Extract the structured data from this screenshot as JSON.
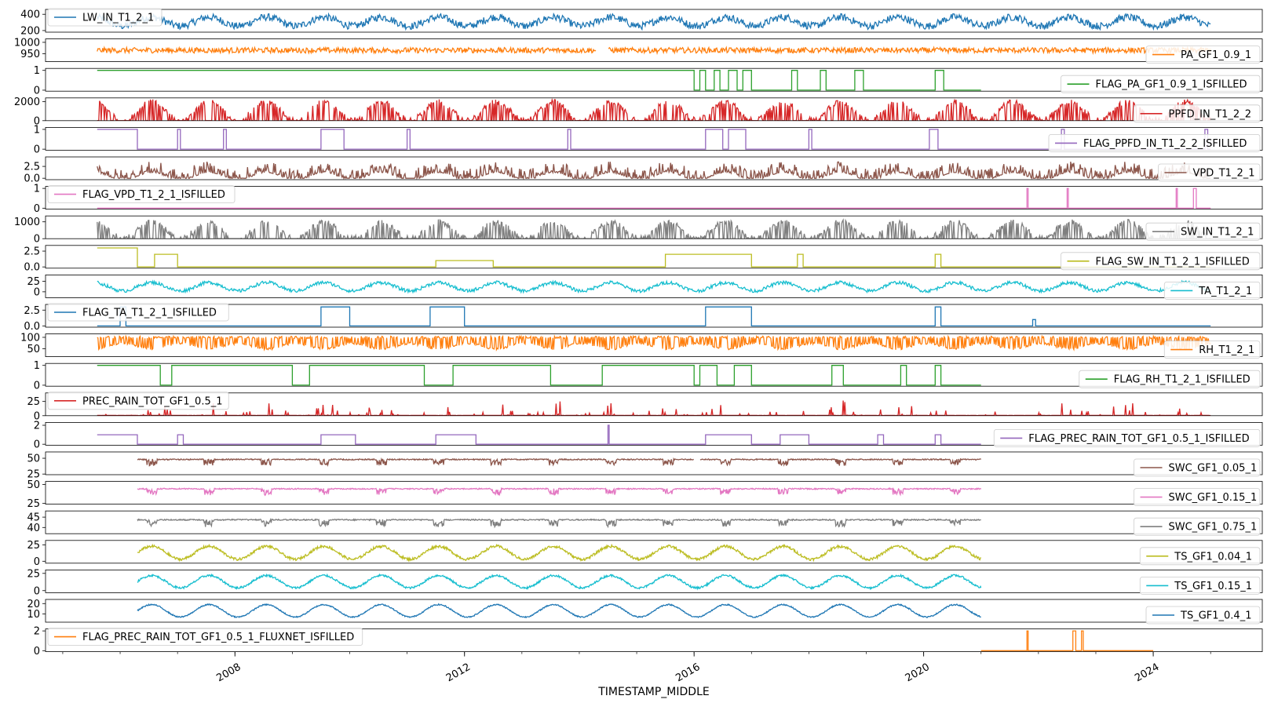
{
  "chart_data": {
    "type": "line",
    "layout": "stacked-subplots",
    "shared_x": true,
    "xlabel": "TIMESTAMP_MIDDLE",
    "x_range": [
      2004.7,
      2025.9
    ],
    "x_ticks": [
      2008,
      2012,
      2016,
      2020,
      2024
    ],
    "x_tick_labels": [
      "2008",
      "2012",
      "2016",
      "2020",
      "2024"
    ],
    "panels": [
      {
        "name": "LW_IN_T1_2_1",
        "color": "#1f77b4",
        "legend": "upper-left",
        "ylim": [
          180,
          460
        ],
        "yticks": [
          200,
          400
        ],
        "kind": "seasonal",
        "start": 2005.6,
        "end": 2025.0,
        "base": 310,
        "amp": 55,
        "noise": 45
      },
      {
        "name": "PA_GF1_0.9_1",
        "color": "#ff7f0e",
        "legend": "lower-right",
        "ylim": [
          915,
          1015
        ],
        "yticks": [
          950,
          1000
        ],
        "kind": "noise",
        "start": 2005.6,
        "end": 2025.0,
        "base": 965,
        "amp": 0,
        "noise": 12,
        "gaps": [
          [
            2014.3,
            2014.5
          ]
        ]
      },
      {
        "name": "FLAG_PA_GF1_0.9_1_ISFILLED",
        "color": "#2ca02c",
        "legend": "lower-right",
        "ylim": [
          -0.05,
          1.1
        ],
        "yticks": [
          0,
          1
        ],
        "kind": "step",
        "start": 2005.6,
        "end": 2021.0,
        "segments": [
          [
            2005.6,
            1
          ],
          [
            2016.0,
            0
          ],
          [
            2016.1,
            1
          ],
          [
            2016.2,
            0
          ],
          [
            2016.35,
            1
          ],
          [
            2016.45,
            0
          ],
          [
            2016.6,
            1
          ],
          [
            2016.75,
            0
          ],
          [
            2016.85,
            1
          ],
          [
            2017.0,
            0
          ],
          [
            2017.7,
            1
          ],
          [
            2017.8,
            0
          ],
          [
            2018.2,
            1
          ],
          [
            2018.3,
            0
          ],
          [
            2018.8,
            1
          ],
          [
            2018.95,
            0
          ],
          [
            2020.2,
            1
          ],
          [
            2020.35,
            0
          ]
        ]
      },
      {
        "name": "PPFD_IN_T1_2_2",
        "color": "#d62728",
        "legend": "lower-right",
        "ylim": [
          0,
          2400
        ],
        "yticks": [
          0,
          2000
        ],
        "kind": "seasonal-fill",
        "start": 2005.6,
        "end": 2025.0,
        "base": 1050,
        "amp": 950,
        "noise": 250
      },
      {
        "name": "FLAG_PPFD_IN_T1_2_2_ISFILLED",
        "color": "#9467bd",
        "legend": "lower-right",
        "ylim": [
          -0.05,
          1.1
        ],
        "yticks": [
          0,
          1
        ],
        "kind": "step",
        "start": 2005.6,
        "end": 2025.0,
        "segments": [
          [
            2005.6,
            1
          ],
          [
            2006.3,
            0
          ],
          [
            2007.0,
            1
          ],
          [
            2007.05,
            0
          ],
          [
            2007.8,
            1
          ],
          [
            2007.85,
            0
          ],
          [
            2009.5,
            1
          ],
          [
            2009.9,
            0
          ],
          [
            2011.0,
            1
          ],
          [
            2011.05,
            0
          ],
          [
            2013.8,
            1
          ],
          [
            2013.85,
            0
          ],
          [
            2016.2,
            1
          ],
          [
            2016.5,
            0
          ],
          [
            2016.6,
            1
          ],
          [
            2016.9,
            0
          ],
          [
            2018.0,
            1
          ],
          [
            2018.05,
            0
          ],
          [
            2020.1,
            1
          ],
          [
            2020.25,
            0
          ],
          [
            2022.4,
            1
          ],
          [
            2022.45,
            0
          ],
          [
            2024.9,
            1
          ],
          [
            2024.95,
            0
          ]
        ]
      },
      {
        "name": "VPD_T1_2_1",
        "color": "#8c564b",
        "legend": "lower-right",
        "ylim": [
          -0.3,
          4.5
        ],
        "yticks": [
          0.0,
          2.5
        ],
        "tick_labels": [
          "0.0",
          "2.5"
        ],
        "kind": "seasonal-spiky",
        "start": 2005.6,
        "end": 2025.0,
        "base": 0.6,
        "amp": 0.8,
        "noise": 1.2
      },
      {
        "name": "FLAG_VPD_T1_2_1_ISFILLED",
        "color": "#e377c2",
        "legend": "upper-left",
        "ylim": [
          -0.05,
          1.1
        ],
        "yticks": [
          0,
          1
        ],
        "kind": "step",
        "start": 2005.6,
        "end": 2025.0,
        "segments": [
          [
            2005.6,
            0
          ],
          [
            2021.8,
            1
          ],
          [
            2021.82,
            0
          ],
          [
            2022.5,
            1
          ],
          [
            2022.52,
            0
          ],
          [
            2024.4,
            1
          ],
          [
            2024.42,
            0
          ],
          [
            2024.7,
            1
          ],
          [
            2024.75,
            0
          ]
        ]
      },
      {
        "name": "SW_IN_T1_2_1",
        "color": "#7f7f7f",
        "legend": "lower-right",
        "ylim": [
          0,
          1350
        ],
        "yticks": [
          0,
          1000
        ],
        "kind": "seasonal-fill",
        "start": 2005.6,
        "end": 2025.0,
        "base": 520,
        "amp": 480,
        "noise": 150
      },
      {
        "name": "FLAG_SW_IN_T1_2_1_ISFILLED",
        "color": "#bcbd22",
        "legend": "lower-right",
        "ylim": [
          -0.2,
          3.4
        ],
        "yticks": [
          0.0,
          2.5
        ],
        "tick_labels": [
          "0.0",
          "2.5"
        ],
        "kind": "step",
        "start": 2005.6,
        "end": 2025.0,
        "segments": [
          [
            2005.6,
            3
          ],
          [
            2006.3,
            0
          ],
          [
            2006.6,
            2
          ],
          [
            2007.0,
            0
          ],
          [
            2011.5,
            1
          ],
          [
            2012.5,
            0
          ],
          [
            2015.5,
            2
          ],
          [
            2017.0,
            0
          ],
          [
            2017.8,
            2
          ],
          [
            2017.9,
            0
          ],
          [
            2020.2,
            2
          ],
          [
            2020.3,
            0
          ]
        ]
      },
      {
        "name": "TA_T1_2_1",
        "color": "#17becf",
        "legend": "lower-right",
        "ylim": [
          -14,
          40
        ],
        "yticks": [
          0,
          25
        ],
        "extra_tick_labels": [
          "25"
        ],
        "kind": "seasonal",
        "start": 2005.6,
        "end": 2025.0,
        "base": 12,
        "amp": 10,
        "noise": 4
      },
      {
        "name": "FLAG_TA_T1_2_1_ISFILLED",
        "color": "#1f77b4",
        "legend": "upper-left",
        "ylim": [
          -0.2,
          3.4
        ],
        "yticks": [
          0.0,
          2.5
        ],
        "tick_labels": [
          "0.0",
          "2.5"
        ],
        "kind": "step",
        "start": 2005.6,
        "end": 2025.0,
        "segments": [
          [
            2005.6,
            0
          ],
          [
            2006.0,
            3
          ],
          [
            2006.1,
            0
          ],
          [
            2009.5,
            3
          ],
          [
            2010.0,
            0
          ],
          [
            2011.4,
            3
          ],
          [
            2012.0,
            0
          ],
          [
            2016.2,
            3
          ],
          [
            2017.0,
            0
          ],
          [
            2020.2,
            3
          ],
          [
            2020.3,
            0
          ],
          [
            2021.9,
            1
          ],
          [
            2021.95,
            0
          ]
        ]
      },
      {
        "name": "RH_T1_2_1",
        "color": "#ff7f0e",
        "legend": "lower-right",
        "ylim": [
          15,
          115
        ],
        "yticks": [
          50,
          100
        ],
        "kind": "fill-high",
        "start": 2005.6,
        "end": 2025.0,
        "base": 75,
        "amp": 12,
        "noise": 18
      },
      {
        "name": "FLAG_RH_T1_2_1_ISFILLED",
        "color": "#2ca02c",
        "legend": "lower-right",
        "ylim": [
          -0.05,
          1.1
        ],
        "yticks": [
          0,
          1
        ],
        "kind": "step",
        "start": 2005.6,
        "end": 2021.0,
        "segments": [
          [
            2005.6,
            1
          ],
          [
            2006.7,
            0
          ],
          [
            2006.9,
            1
          ],
          [
            2009.0,
            0
          ],
          [
            2009.3,
            1
          ],
          [
            2011.3,
            0
          ],
          [
            2011.8,
            1
          ],
          [
            2013.5,
            0
          ],
          [
            2014.4,
            1
          ],
          [
            2016.0,
            0
          ],
          [
            2016.1,
            1
          ],
          [
            2016.4,
            0
          ],
          [
            2016.7,
            1
          ],
          [
            2017.0,
            0
          ],
          [
            2018.4,
            1
          ],
          [
            2018.6,
            0
          ],
          [
            2019.6,
            1
          ],
          [
            2019.7,
            0
          ],
          [
            2020.2,
            1
          ],
          [
            2020.3,
            0
          ]
        ]
      },
      {
        "name": "PREC_RAIN_TOT_GF1_0.5_1",
        "color": "#d62728",
        "legend": "upper-left",
        "ylim": [
          0,
          40
        ],
        "yticks": [
          0,
          25
        ],
        "kind": "spikes",
        "start": 2005.6,
        "end": 2025.0,
        "base": 0,
        "amp": 12,
        "noise": 28
      },
      {
        "name": "FLAG_PREC_RAIN_TOT_GF1_0.5_1_ISFILLED",
        "color": "#9467bd",
        "legend": "lower-right",
        "ylim": [
          -0.1,
          2.3
        ],
        "yticks": [
          0,
          2
        ],
        "kind": "step",
        "start": 2005.6,
        "end": 2021.0,
        "segments": [
          [
            2005.6,
            1
          ],
          [
            2006.3,
            0
          ],
          [
            2007.0,
            1
          ],
          [
            2007.1,
            0
          ],
          [
            2009.5,
            1
          ],
          [
            2010.1,
            0
          ],
          [
            2011.5,
            1
          ],
          [
            2012.2,
            0
          ],
          [
            2014.5,
            2
          ],
          [
            2014.52,
            0
          ],
          [
            2016.2,
            1
          ],
          [
            2017.0,
            0
          ],
          [
            2017.5,
            1
          ],
          [
            2018.0,
            0
          ],
          [
            2019.2,
            1
          ],
          [
            2019.3,
            0
          ],
          [
            2020.2,
            1
          ],
          [
            2020.3,
            0
          ]
        ]
      },
      {
        "name": "SWC_GF1_0.05_1",
        "color": "#8c564b",
        "legend": "lower-right",
        "ylim": [
          24,
          60
        ],
        "yticks": [
          25,
          50
        ],
        "kind": "dips",
        "start": 2006.3,
        "end": 2021.0,
        "base": 49,
        "amp": 0,
        "noise": 6,
        "gaps": [
          [
            2016.0,
            2016.1
          ]
        ]
      },
      {
        "name": "SWC_GF1_0.15_1",
        "color": "#e377c2",
        "legend": "lower-right",
        "ylim": [
          24,
          54
        ],
        "yticks": [
          25,
          50
        ],
        "kind": "dips",
        "start": 2006.3,
        "end": 2021.0,
        "base": 45,
        "amp": 0,
        "noise": 5
      },
      {
        "name": "SWC_GF1_0.75_1",
        "color": "#7f7f7f",
        "legend": "lower-right",
        "ylim": [
          37,
          48
        ],
        "yticks": [
          40,
          45
        ],
        "kind": "dips",
        "start": 2006.3,
        "end": 2021.0,
        "base": 44,
        "amp": 0,
        "noise": 2
      },
      {
        "name": "TS_GF1_0.04_1",
        "color": "#bcbd22",
        "legend": "lower-right",
        "ylim": [
          -3,
          32
        ],
        "yticks": [
          0,
          25
        ],
        "kind": "seasonal",
        "start": 2006.3,
        "end": 2021.0,
        "base": 13,
        "amp": 10,
        "noise": 2
      },
      {
        "name": "TS_GF1_0.15_1",
        "color": "#17becf",
        "legend": "lower-right",
        "ylim": [
          -3,
          30
        ],
        "yticks": [
          0,
          25
        ],
        "kind": "seasonal",
        "start": 2006.3,
        "end": 2021.0,
        "base": 13,
        "amp": 9,
        "noise": 1.5
      },
      {
        "name": "TS_GF1_0.4_1",
        "color": "#1f77b4",
        "legend": "lower-right",
        "ylim": [
          2,
          24
        ],
        "yticks": [
          10,
          20
        ],
        "kind": "seasonal",
        "start": 2006.3,
        "end": 2021.0,
        "base": 13,
        "amp": 6,
        "noise": 0.6
      },
      {
        "name": "FLAG_PREC_RAIN_TOT_GF1_0.5_1_FLUXNET_ISFILLED",
        "color": "#ff7f0e",
        "legend": "upper-left",
        "ylim": [
          -0.1,
          2.2
        ],
        "yticks": [
          0,
          2
        ],
        "kind": "step",
        "start": 2021.0,
        "end": 2024.0,
        "segments": [
          [
            2021.0,
            0
          ],
          [
            2021.8,
            2
          ],
          [
            2021.82,
            0
          ],
          [
            2022.6,
            2
          ],
          [
            2022.65,
            0
          ],
          [
            2022.75,
            2
          ],
          [
            2022.78,
            0
          ]
        ]
      }
    ]
  }
}
